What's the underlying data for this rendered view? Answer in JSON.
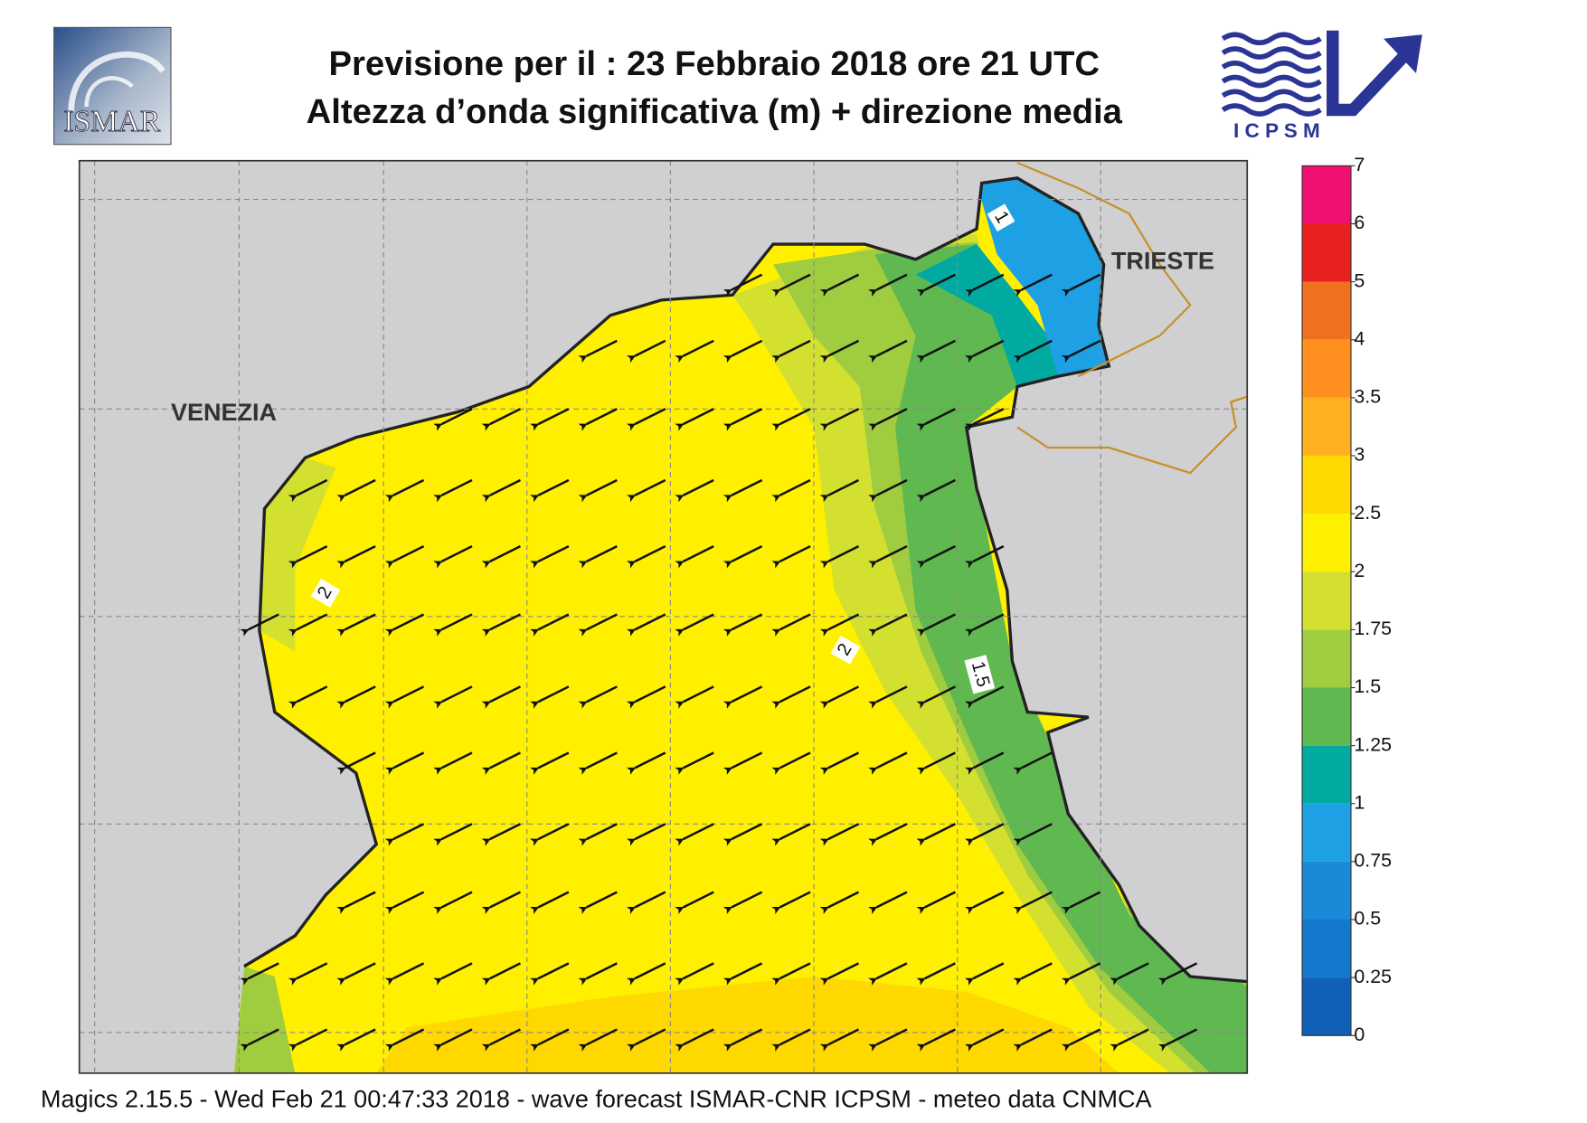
{
  "header": {
    "title_lines": [
      "Previsione per il  :  23  Febbraio 2018   ore 21 UTC",
      "Altezza d’onda significativa (m) + direzione media"
    ],
    "left_logo": "ISMAR",
    "right_logo": "I C P S M"
  },
  "map": {
    "places": [
      "VENEZIA",
      "TRIESTE"
    ],
    "contour_labels": [
      "1",
      "2",
      "2",
      "1.5"
    ]
  },
  "colorbar": {
    "ticks": [
      0,
      0.25,
      0.5,
      0.75,
      1,
      1.25,
      1.5,
      1.75,
      2,
      2.5,
      3,
      3.5,
      4,
      5,
      6,
      7
    ],
    "colors": [
      "#1060b8",
      "#1478cc",
      "#1a8ad8",
      "#1ea0e4",
      "#00aaa0",
      "#60b850",
      "#a0cc40",
      "#d4e030",
      "#fff000",
      "#ffd800",
      "#ffb020",
      "#ff9020",
      "#f07020",
      "#e82020",
      "#f01070"
    ]
  },
  "footer": "Magics 2.15.5 - Wed Feb 21 00:47:33 2018 - wave forecast  ISMAR-CNR  ICPSM - meteo data   CNMCA"
}
